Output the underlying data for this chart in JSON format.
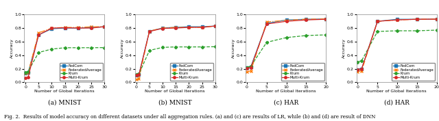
{
  "panels": [
    {
      "title": "(a) MNIST",
      "xlabel": "Number of Global Iterations",
      "ylabel": "Accuracy",
      "xlim": [
        -0.5,
        30
      ],
      "xticks": [
        0,
        5,
        10,
        15,
        20,
        25,
        30
      ],
      "ylim": [
        0.0,
        1.0
      ],
      "yticks": [
        0.0,
        0.2,
        0.4,
        0.6,
        0.8,
        1.0
      ],
      "series": {
        "FedCom": {
          "x": [
            0,
            1,
            5,
            10,
            15,
            20,
            25,
            30
          ],
          "y": [
            0.13,
            0.14,
            0.7,
            0.79,
            0.8,
            0.8,
            0.808,
            0.82
          ],
          "color": "#1f77b4",
          "marker": "s",
          "linestyle": "-"
        },
        "FederatedAverage": {
          "x": [
            0,
            1,
            5,
            10,
            15,
            20,
            25,
            30
          ],
          "y": [
            0.13,
            0.14,
            0.73,
            0.8,
            0.81,
            0.81,
            0.818,
            0.822
          ],
          "color": "#ff7f0e",
          "marker": "x",
          "linestyle": "-."
        },
        "Krum": {
          "x": [
            0,
            1,
            5,
            10,
            15,
            20,
            25,
            30
          ],
          "y": [
            0.14,
            0.16,
            0.44,
            0.49,
            0.51,
            0.51,
            0.51,
            0.512
          ],
          "color": "#2ca02c",
          "marker": "D",
          "linestyle": "--"
        },
        "Multi-Krum": {
          "x": [
            0,
            1,
            5,
            10,
            15,
            20,
            25,
            30
          ],
          "y": [
            0.06,
            0.07,
            0.7,
            0.8,
            0.805,
            0.8,
            0.8,
            0.82
          ],
          "color": "#d62728",
          "marker": "o",
          "linestyle": "-"
        }
      }
    },
    {
      "title": "(b) MNIST",
      "xlabel": "Number of Global Iterations",
      "ylabel": "Accuracy",
      "xlim": [
        -0.5,
        30
      ],
      "xticks": [
        0,
        5,
        10,
        15,
        20,
        25,
        30
      ],
      "ylim": [
        0.0,
        1.0
      ],
      "yticks": [
        0.0,
        0.2,
        0.4,
        0.6,
        0.8,
        1.0
      ],
      "series": {
        "FedCom": {
          "x": [
            0,
            1,
            5,
            10,
            15,
            20,
            25,
            30
          ],
          "y": [
            0.1,
            0.11,
            0.755,
            0.8,
            0.812,
            0.82,
            0.82,
            0.83
          ],
          "color": "#1f77b4",
          "marker": "s",
          "linestyle": "-"
        },
        "FederatedAverage": {
          "x": [
            0,
            1,
            5,
            10,
            15,
            20,
            25,
            30
          ],
          "y": [
            0.04,
            0.05,
            0.755,
            0.8,
            0.81,
            0.81,
            0.812,
            0.83
          ],
          "color": "#ff7f0e",
          "marker": "x",
          "linestyle": "-."
        },
        "Krum": {
          "x": [
            0,
            1,
            5,
            10,
            15,
            20,
            25,
            30
          ],
          "y": [
            0.11,
            0.12,
            0.47,
            0.515,
            0.522,
            0.522,
            0.522,
            0.525
          ],
          "color": "#2ca02c",
          "marker": "D",
          "linestyle": "--"
        },
        "Multi-Krum": {
          "x": [
            0,
            1,
            5,
            10,
            15,
            20,
            25,
            30
          ],
          "y": [
            0.1,
            0.11,
            0.75,
            0.795,
            0.8,
            0.81,
            0.81,
            0.83
          ],
          "color": "#d62728",
          "marker": "o",
          "linestyle": "-"
        }
      }
    },
    {
      "title": "(c) HAR",
      "xlabel": "Number of Global Iterations",
      "ylabel": "Accuracy",
      "xlim": [
        -0.3,
        20
      ],
      "xticks": [
        0,
        5,
        10,
        15,
        20
      ],
      "ylim": [
        0.0,
        1.0
      ],
      "yticks": [
        0.0,
        0.2,
        0.4,
        0.6,
        0.8,
        1.0
      ],
      "series": {
        "FedCom": {
          "x": [
            0,
            1,
            5,
            10,
            15,
            20
          ],
          "y": [
            0.22,
            0.23,
            0.87,
            0.92,
            0.93,
            0.935
          ],
          "color": "#1f77b4",
          "marker": "s",
          "linestyle": "-"
        },
        "FederatedAverage": {
          "x": [
            0,
            1,
            5,
            10,
            15,
            20
          ],
          "y": [
            0.15,
            0.17,
            0.89,
            0.915,
            0.93,
            0.935
          ],
          "color": "#ff7f0e",
          "marker": "x",
          "linestyle": "-."
        },
        "Krum": {
          "x": [
            0,
            1,
            5,
            10,
            15,
            20
          ],
          "y": [
            0.22,
            0.24,
            0.59,
            0.66,
            0.69,
            0.7
          ],
          "color": "#2ca02c",
          "marker": "D",
          "linestyle": "--"
        },
        "Multi-Krum": {
          "x": [
            0,
            1,
            5,
            10,
            15,
            20
          ],
          "y": [
            0.21,
            0.22,
            0.86,
            0.9,
            0.92,
            0.93
          ],
          "color": "#d62728",
          "marker": "o",
          "linestyle": "-"
        }
      }
    },
    {
      "title": "(d) HAR",
      "xlabel": "Number of Global Iterations",
      "ylabel": "Accuracy",
      "xlim": [
        -0.3,
        20
      ],
      "xticks": [
        0,
        5,
        10,
        15,
        20
      ],
      "ylim": [
        0.0,
        1.0
      ],
      "yticks": [
        0.0,
        0.2,
        0.4,
        0.6,
        0.8,
        1.0
      ],
      "series": {
        "FedCom": {
          "x": [
            0,
            1,
            5,
            10,
            15,
            20
          ],
          "y": [
            0.19,
            0.2,
            0.9,
            0.93,
            0.93,
            0.932
          ],
          "color": "#1f77b4",
          "marker": "s",
          "linestyle": "-"
        },
        "FederatedAverage": {
          "x": [
            0,
            1,
            5,
            10,
            15,
            20
          ],
          "y": [
            0.16,
            0.17,
            0.9,
            0.92,
            0.93,
            0.932
          ],
          "color": "#ff7f0e",
          "marker": "x",
          "linestyle": "-."
        },
        "Krum": {
          "x": [
            0,
            1,
            5,
            10,
            15,
            20
          ],
          "y": [
            0.3,
            0.32,
            0.75,
            0.76,
            0.76,
            0.77
          ],
          "color": "#2ca02c",
          "marker": "D",
          "linestyle": "--"
        },
        "Multi-Krum": {
          "x": [
            0,
            1,
            5,
            10,
            15,
            20
          ],
          "y": [
            0.19,
            0.2,
            0.9,
            0.92,
            0.93,
            0.932
          ],
          "color": "#d62728",
          "marker": "o",
          "linestyle": "-"
        }
      }
    }
  ],
  "caption": "Fig. 2.  Results of model accuracy on different datasets under all aggregation rules. (a) and (c) are results of LR, while (b) and (d) are result of DNN",
  "background_color": "#ffffff"
}
